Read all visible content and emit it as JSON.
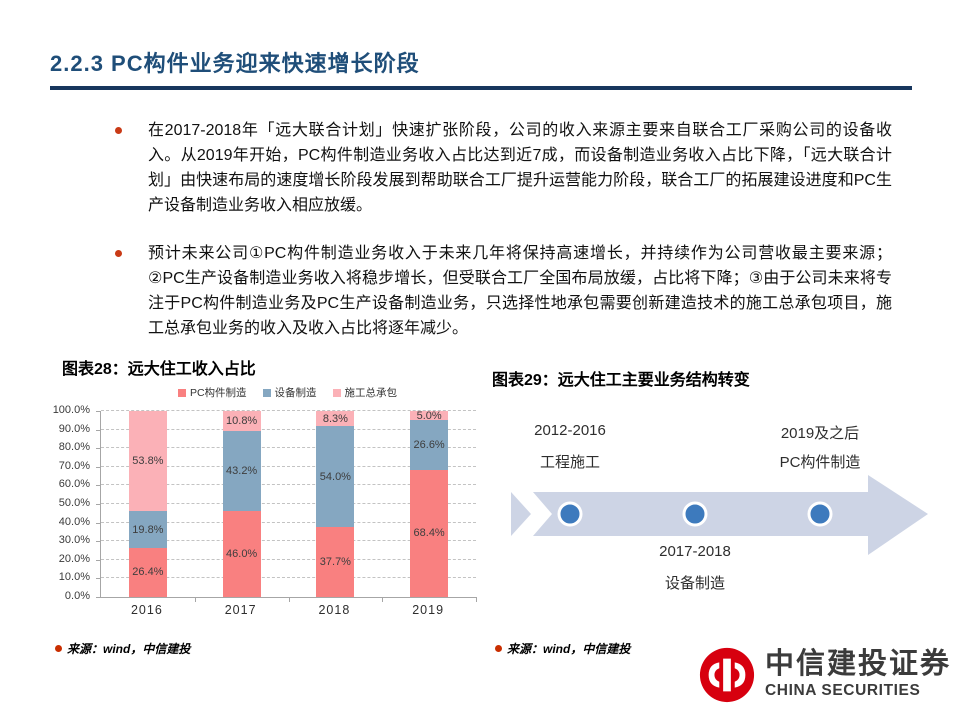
{
  "header": {
    "title": "2.2.3 PC构件业务迎来快速增长阶段"
  },
  "bullets": [
    "在2017-2018年「远大联合计划」快速扩张阶段，公司的收入来源主要来自联合工厂采购公司的设备收入。从2019年开始，PC构件制造业务收入占比达到近7成，而设备制造业务收入占比下降，「远大联合计划」由快速布局的速度增长阶段发展到帮助联合工厂提升运营能力阶段，联合工厂的拓展建设进度和PC生产设备制造业务收入相应放缓。",
    "预计未来公司①PC构件制造业务收入于未来几年将保持高速增长，并持续作为公司营收最主要来源；②PC生产设备制造业务收入将稳步增长，但受联合工厂全国布局放缓，占比将下降；③由于公司未来将专注于PC构件制造业务及PC生产设备制造业务，只选择性地承包需要创新建造技术的施工总承包项目，施工总承包业务的收入及收入占比将逐年减少。"
  ],
  "figure28": {
    "title": "图表28：远大住工收入占比",
    "source_label": "来源：wind，中信建投"
  },
  "chart_data": {
    "type": "bar",
    "stacked": true,
    "title": "图表28：远大住工收入占比",
    "categories": [
      "2016",
      "2017",
      "2018",
      "2019"
    ],
    "series": [
      {
        "name": "PC构件制造",
        "color": "#F98080",
        "values": [
          26.4,
          46.0,
          37.7,
          68.4
        ]
      },
      {
        "name": "设备制造",
        "color": "#85A7C1",
        "values": [
          19.8,
          43.2,
          54.0,
          26.6
        ]
      },
      {
        "name": "施工总承包",
        "color": "#FBB1B7",
        "values": [
          53.8,
          10.8,
          8.3,
          5.0
        ]
      }
    ],
    "xlabel": "",
    "ylabel": "",
    "ylim": [
      0,
      100
    ],
    "ytick_step": 10,
    "ytick_suffix": "%",
    "grid": "horizontal-dashed",
    "legend_position": "top",
    "data_labels": true
  },
  "figure29": {
    "title": "图表29：远大住工主要业务结构转变",
    "source_label": "来源：wind，中信建投",
    "arrow_color": "#CDD4E5",
    "dot_color": "#3D7ABD",
    "milestones": [
      {
        "period": "2012-2016",
        "label": "工程施工",
        "position": "above"
      },
      {
        "period": "2017-2018",
        "label": "设备制造",
        "position": "below"
      },
      {
        "period": "2019及之后",
        "label": "PC构件制造",
        "position": "above"
      }
    ]
  },
  "logo": {
    "name_cn": "中信建投证券",
    "name_en": "CHINA SECURITIES",
    "brand_color": "#D7000F"
  },
  "colors": {
    "title_blue": "#1F4E79",
    "rule_navy": "#17365D",
    "bullet_marker_red": "#C93A16",
    "source_dot_red": "#C92E00",
    "axis_gray": "#A6A6A6",
    "gridline_gray": "#C3C3C3"
  }
}
